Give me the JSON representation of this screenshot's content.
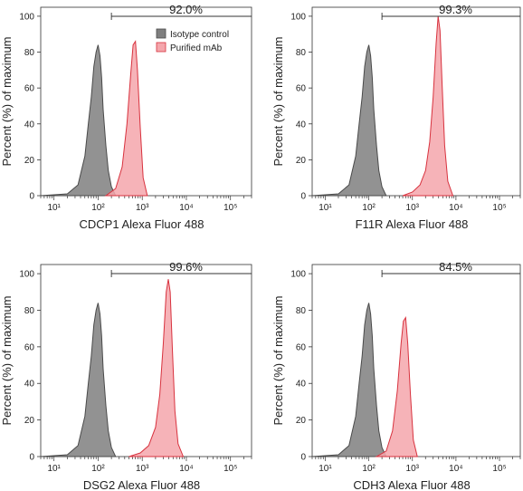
{
  "chart_data": [
    {
      "type": "area",
      "xlabel": "CDCP1 Alexa Fluor 488",
      "ylabel": "Percent (%) of maximum",
      "x_scale": "log",
      "xlim": [
        5,
        300000
      ],
      "ylim": [
        0,
        105
      ],
      "y_ticks": [
        "0",
        "20",
        "40",
        "60",
        "80",
        "100"
      ],
      "x_ticks": [
        "10¹",
        "10²",
        "10³",
        "10⁴",
        "10⁵"
      ],
      "gate_label": "92.0%",
      "gate_range": [
        200,
        300000
      ],
      "legend": {
        "position": "top-right",
        "entries": [
          "Isotype control",
          "Purified mAb"
        ]
      },
      "series": [
        {
          "name": "Isotype control",
          "color": "#7f7f7f",
          "x": [
            5,
            20,
            35,
            50,
            60,
            70,
            80,
            90,
            100,
            110,
            120,
            130,
            150,
            170,
            200,
            250
          ],
          "y": [
            0,
            1,
            6,
            22,
            40,
            55,
            72,
            80,
            84,
            78,
            66,
            48,
            28,
            14,
            5,
            0
          ]
        },
        {
          "name": "Purified mAb",
          "color": "#f4a6ac",
          "x": [
            150,
            250,
            350,
            450,
            550,
            620,
            700,
            780,
            900,
            1050,
            1300
          ],
          "y": [
            0,
            4,
            16,
            40,
            68,
            84,
            86,
            70,
            38,
            10,
            0
          ]
        }
      ]
    },
    {
      "type": "area",
      "xlabel": "F11R Alexa Fluor 488",
      "ylabel": "Percent (%) of maximum",
      "x_scale": "log",
      "xlim": [
        5,
        300000
      ],
      "ylim": [
        0,
        105
      ],
      "y_ticks": [
        "0",
        "20",
        "40",
        "60",
        "80",
        "100"
      ],
      "x_ticks": [
        "10¹",
        "10²",
        "10³",
        "10⁴",
        "10⁵"
      ],
      "gate_label": "99.3%",
      "gate_range": [
        200,
        300000
      ],
      "series": [
        {
          "name": "Isotype control",
          "color": "#7f7f7f",
          "x": [
            5,
            20,
            35,
            50,
            60,
            70,
            80,
            90,
            100,
            110,
            120,
            130,
            150,
            170,
            200,
            250
          ],
          "y": [
            0,
            1,
            6,
            22,
            40,
            55,
            72,
            80,
            84,
            78,
            66,
            48,
            28,
            14,
            5,
            0
          ]
        },
        {
          "name": "Purified mAb",
          "color": "#f4a6ac",
          "x": [
            600,
            1000,
            1500,
            2000,
            2500,
            3000,
            3500,
            3900,
            4300,
            4800,
            5500,
            6500,
            8500
          ],
          "y": [
            0,
            2,
            6,
            14,
            30,
            55,
            85,
            100,
            92,
            62,
            28,
            8,
            0
          ]
        }
      ]
    },
    {
      "type": "area",
      "xlabel": "DSG2 Alexa Fluor 488",
      "ylabel": "Percent (%) of maximum",
      "x_scale": "log",
      "xlim": [
        5,
        300000
      ],
      "ylim": [
        0,
        105
      ],
      "y_ticks": [
        "0",
        "20",
        "40",
        "60",
        "80",
        "100"
      ],
      "x_ticks": [
        "10¹",
        "10²",
        "10³",
        "10⁴",
        "10⁵"
      ],
      "gate_label": "99.6%",
      "gate_range": [
        200,
        300000
      ],
      "series": [
        {
          "name": "Isotype control",
          "color": "#7f7f7f",
          "x": [
            5,
            20,
            35,
            50,
            60,
            70,
            80,
            90,
            100,
            110,
            120,
            130,
            150,
            170,
            200,
            250
          ],
          "y": [
            0,
            1,
            6,
            22,
            40,
            55,
            72,
            80,
            84,
            78,
            66,
            48,
            28,
            14,
            5,
            0
          ]
        },
        {
          "name": "Purified mAb",
          "color": "#f4a6ac",
          "x": [
            500,
            900,
            1400,
            2000,
            2500,
            3000,
            3500,
            3900,
            4300,
            4800,
            5500,
            6500,
            8500
          ],
          "y": [
            0,
            2,
            6,
            16,
            34,
            62,
            90,
            97,
            90,
            60,
            25,
            7,
            0
          ]
        }
      ]
    },
    {
      "type": "area",
      "xlabel": "CDH3 Alexa Fluor 488",
      "ylabel": "Percent (%) of maximum",
      "x_scale": "log",
      "xlim": [
        5,
        300000
      ],
      "ylim": [
        0,
        105
      ],
      "y_ticks": [
        "0",
        "20",
        "40",
        "60",
        "80",
        "100"
      ],
      "x_ticks": [
        "10¹",
        "10²",
        "10³",
        "10⁴",
        "10⁵"
      ],
      "gate_label": "84.5%",
      "gate_range": [
        200,
        300000
      ],
      "series": [
        {
          "name": "Isotype control",
          "color": "#7f7f7f",
          "x": [
            5,
            20,
            35,
            50,
            60,
            70,
            80,
            90,
            100,
            110,
            120,
            130,
            150,
            170,
            200,
            250
          ],
          "y": [
            0,
            1,
            6,
            22,
            40,
            55,
            72,
            80,
            84,
            78,
            66,
            48,
            28,
            14,
            5,
            0
          ]
        },
        {
          "name": "Purified mAb",
          "color": "#f4a6ac",
          "x": [
            150,
            250,
            350,
            450,
            550,
            620,
            700,
            780,
            900,
            1050,
            1300
          ],
          "y": [
            0,
            3,
            14,
            36,
            62,
            74,
            76,
            62,
            34,
            9,
            0
          ]
        }
      ]
    }
  ]
}
